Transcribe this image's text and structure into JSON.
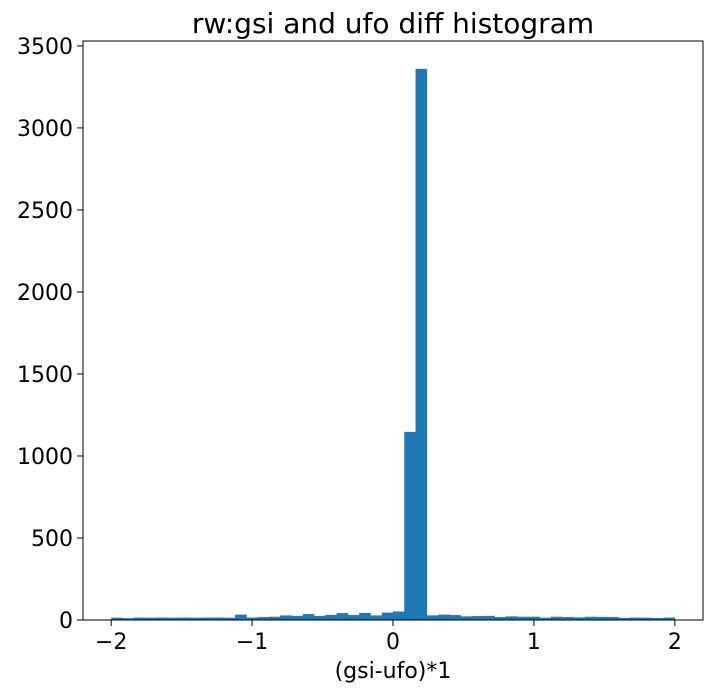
{
  "chart_data": {
    "type": "bar",
    "title": "rw:gsi and ufo diff histogram",
    "xlabel": "(gsi-ufo)*1",
    "ylabel": "",
    "xlim": [
      -2.2,
      2.2
    ],
    "ylim": [
      0,
      3530
    ],
    "xticks": [
      -2,
      -1,
      0,
      1,
      2
    ],
    "xtick_labels": [
      "−2",
      "−1",
      "0",
      "1",
      "2"
    ],
    "yticks": [
      0,
      500,
      1000,
      1500,
      2000,
      2500,
      3000,
      3500
    ],
    "ytick_labels": [
      "0",
      "500",
      "1000",
      "1500",
      "2000",
      "2500",
      "3000",
      "3500"
    ],
    "bin_start": -2.0,
    "bin_width": 0.08,
    "values": [
      14,
      11,
      15,
      14,
      15,
      14,
      15,
      14,
      15,
      15,
      14,
      33,
      15,
      18,
      20,
      28,
      25,
      36,
      25,
      31,
      42,
      30,
      43,
      28,
      45,
      52,
      1147,
      3360,
      28,
      33,
      30,
      22,
      24,
      25,
      18,
      22,
      20,
      20,
      14,
      20,
      18,
      16,
      20,
      19,
      18,
      13,
      15,
      14,
      12,
      15
    ],
    "bar_color": "#1f77b4"
  }
}
